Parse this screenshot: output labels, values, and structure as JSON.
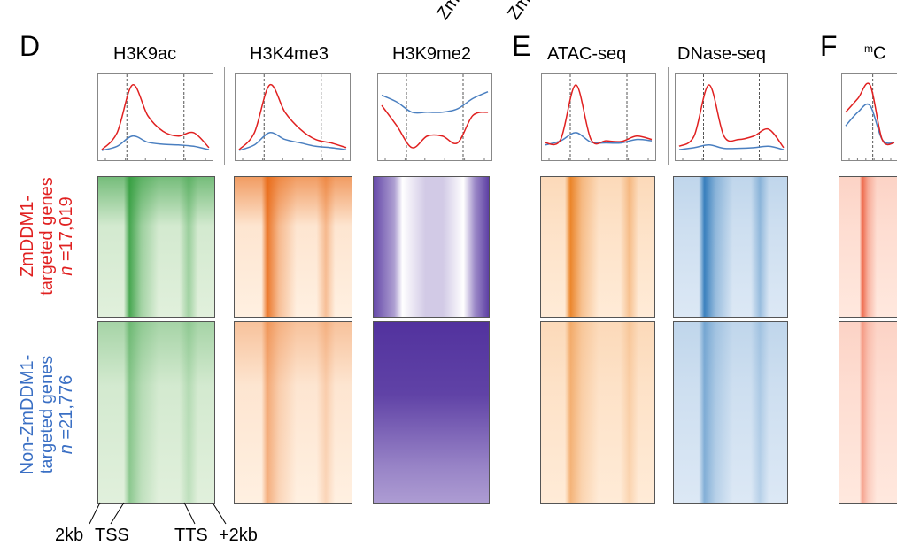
{
  "panels": {
    "d_letter": "D",
    "e_letter": "E",
    "f_letter": "F"
  },
  "top_cut_labels": [
    "Zm",
    "Zm"
  ],
  "columns": [
    {
      "title": "H3K9ac",
      "color": "#2e9b3a"
    },
    {
      "title": "H3K4me3",
      "color": "#e8650f"
    },
    {
      "title": "H3K9me2",
      "color": "#4b2a9a"
    },
    {
      "title": "ATAC-seq",
      "color": "#e8750f"
    },
    {
      "title": "DNase-seq",
      "color": "#1f6fb4"
    },
    {
      "title_sup": "m",
      "title": "C",
      "color": "#ec5a3a"
    }
  ],
  "rows": {
    "targeted": {
      "line1": "ZmDDM1-",
      "line2": "targeted genes",
      "n_italic": "n",
      "n_value": " =17,019",
      "color": "#e02020"
    },
    "non_targeted": {
      "line1": "Non-ZmDDM1-",
      "line2": "targeted genes",
      "n_italic": "n",
      "n_value": " =21,776",
      "color": "#3a6fc4"
    }
  },
  "axis": {
    "left": "2kb",
    "tss": "TSS",
    "tts": "TTS",
    "right": "+2kb"
  },
  "series_colors": {
    "targeted": "#e02020",
    "non_targeted": "#4a7fc0"
  },
  "chart_data": {
    "type": "line",
    "x": [
      -2,
      "TSS",
      "TTS",
      2
    ],
    "series_names_note": "",
    "profiles": [
      {
        "name": "H3K9ac",
        "targeted": [
          0.05,
          0.3,
          1.0,
          0.55,
          0.32,
          0.25,
          0.3,
          0.08
        ],
        "non_targeted": [
          0.04,
          0.1,
          0.25,
          0.16,
          0.13,
          0.12,
          0.1,
          0.05
        ]
      },
      {
        "name": "H3K4me3",
        "targeted": [
          0.05,
          0.3,
          1.0,
          0.6,
          0.35,
          0.2,
          0.15,
          0.08
        ],
        "non_targeted": [
          0.04,
          0.12,
          0.3,
          0.2,
          0.15,
          0.1,
          0.08,
          0.05
        ]
      },
      {
        "name": "H3K9me2",
        "targeted": [
          0.7,
          0.4,
          0.08,
          0.25,
          0.25,
          0.15,
          0.55,
          0.6
        ],
        "non_targeted": [
          0.85,
          0.75,
          0.6,
          0.6,
          0.6,
          0.65,
          0.8,
          0.9
        ]
      },
      {
        "name": "ATAC-seq",
        "targeted": [
          0.15,
          0.2,
          1.0,
          0.2,
          0.18,
          0.17,
          0.25,
          0.2
        ],
        "non_targeted": [
          0.12,
          0.18,
          0.3,
          0.16,
          0.15,
          0.15,
          0.2,
          0.18
        ]
      },
      {
        "name": "DNase-seq",
        "targeted": [
          0.1,
          0.25,
          1.0,
          0.25,
          0.2,
          0.25,
          0.35,
          0.08
        ],
        "non_targeted": [
          0.05,
          0.08,
          0.12,
          0.07,
          0.07,
          0.08,
          0.1,
          0.05
        ]
      },
      {
        "name": "mC",
        "targeted": [
          0.6,
          0.8,
          1.0,
          0.2,
          0.15
        ],
        "non_targeted": [
          0.4,
          0.6,
          0.7,
          0.2,
          0.15
        ]
      }
    ]
  }
}
